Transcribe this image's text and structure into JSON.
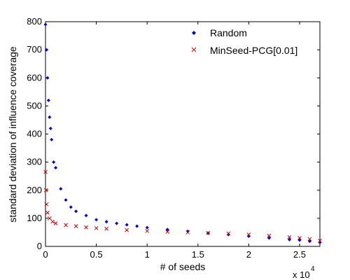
{
  "chart_data": {
    "type": "scatter",
    "xlabel": "# of seeds",
    "ylabel": "standard deviation of influence coverage",
    "xlim": [
      0,
      27000
    ],
    "ylim": [
      0,
      800
    ],
    "x_ticks": [
      0,
      5000,
      10000,
      15000,
      20000,
      25000
    ],
    "x_tick_labels": [
      "0",
      "0.5",
      "1",
      "1.5",
      "2",
      "2.5"
    ],
    "x_exponent_base": "x 10",
    "x_exponent_power": "4",
    "y_ticks": [
      0,
      100,
      200,
      300,
      400,
      500,
      600,
      700,
      800
    ],
    "y_tick_labels": [
      "0",
      "100",
      "200",
      "300",
      "400",
      "500",
      "600",
      "700",
      "800"
    ],
    "grid": false,
    "legend_position": "top-right",
    "series": [
      {
        "name": "Random",
        "color": "#0000cc",
        "marker": "diamond",
        "points": [
          [
            0,
            790
          ],
          [
            100,
            700
          ],
          [
            200,
            600
          ],
          [
            300,
            520
          ],
          [
            400,
            460
          ],
          [
            500,
            420
          ],
          [
            600,
            380
          ],
          [
            800,
            300
          ],
          [
            1000,
            280
          ],
          [
            1500,
            205
          ],
          [
            2000,
            165
          ],
          [
            2500,
            140
          ],
          [
            3000,
            125
          ],
          [
            4000,
            110
          ],
          [
            5000,
            95
          ],
          [
            6000,
            88
          ],
          [
            7000,
            82
          ],
          [
            8000,
            77
          ],
          [
            9000,
            72
          ],
          [
            10000,
            67
          ],
          [
            12000,
            60
          ],
          [
            14000,
            54
          ],
          [
            16000,
            47
          ],
          [
            18000,
            42
          ],
          [
            20000,
            36
          ],
          [
            22000,
            30
          ],
          [
            24000,
            24
          ],
          [
            25000,
            22
          ],
          [
            26000,
            18
          ],
          [
            27000,
            14
          ]
        ]
      },
      {
        "name": "MinSeed-PCG[0.01]",
        "color": "#cc0000",
        "marker": "x",
        "points": [
          [
            0,
            265
          ],
          [
            50,
            200
          ],
          [
            100,
            150
          ],
          [
            200,
            120
          ],
          [
            400,
            100
          ],
          [
            700,
            88
          ],
          [
            1000,
            82
          ],
          [
            2000,
            76
          ],
          [
            3000,
            72
          ],
          [
            4000,
            68
          ],
          [
            5000,
            65
          ],
          [
            6000,
            63
          ],
          [
            8000,
            58
          ],
          [
            10000,
            55
          ],
          [
            12000,
            52
          ],
          [
            14000,
            50
          ],
          [
            16000,
            48
          ],
          [
            18000,
            46
          ],
          [
            20000,
            42
          ],
          [
            22000,
            38
          ],
          [
            24000,
            33
          ],
          [
            25000,
            30
          ],
          [
            26000,
            26
          ],
          [
            27000,
            20
          ]
        ]
      }
    ]
  }
}
